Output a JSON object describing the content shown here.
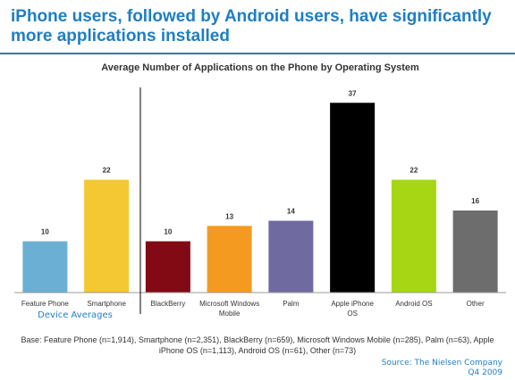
{
  "headline": "iPhone users, followed by Android users, have significantly more applications installed",
  "chart_data": {
    "type": "bar",
    "title": "Average Number of Applications on the Phone by Operating System",
    "xlabel": "",
    "ylabel": "",
    "ylim": [
      0,
      40
    ],
    "grid": false,
    "categories": [
      "Feature Phone",
      "Smartphone",
      "BlackBerry",
      "Microsoft Windows Mobile",
      "Palm",
      "Apple iPhone OS",
      "Android OS",
      "Other"
    ],
    "values": [
      10,
      22,
      10,
      13,
      14,
      37,
      22,
      16
    ],
    "colors": [
      "#6bb0d4",
      "#f4c832",
      "#820a14",
      "#f59a21",
      "#6f6aa0",
      "#000000",
      "#a6d614",
      "#6d6d6d"
    ],
    "group_label": "Device Averages"
  },
  "footnote": "Base: Feature Phone (n=1,914), Smartphone (n=2,351), BlackBerry (n=659), Microsoft Windows Mobile (n=285), Palm (n=63), Apple iPhone OS (n=1,113), Android OS (n=61), Other (n=73)",
  "source": {
    "line1": "Source: The Nielsen Company",
    "line2": "Q4 2009"
  }
}
